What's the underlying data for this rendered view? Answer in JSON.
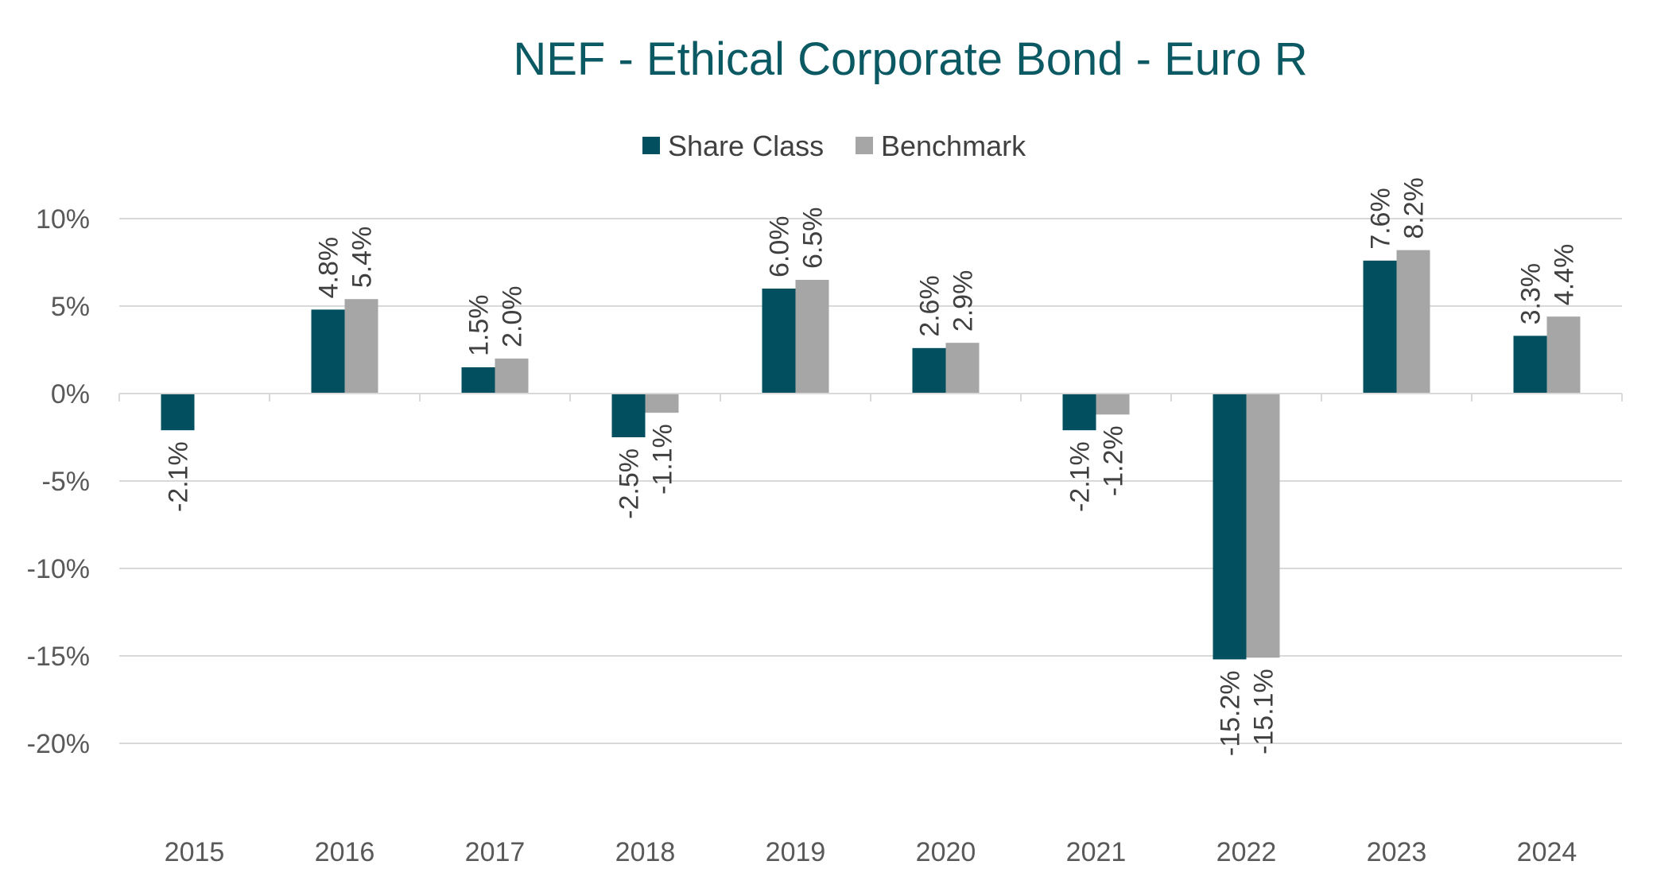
{
  "chart_data": {
    "type": "bar",
    "title": "NEF - Ethical Corporate Bond - Euro R",
    "categories": [
      "2015",
      "2016",
      "2017",
      "2018",
      "2019",
      "2020",
      "2021",
      "2022",
      "2023",
      "2024"
    ],
    "series": [
      {
        "name": "Share Class",
        "color": "#02505f",
        "values": [
          -2.1,
          4.8,
          1.5,
          -2.5,
          6.0,
          2.6,
          -2.1,
          -15.2,
          7.6,
          3.3
        ],
        "labels": [
          "-2.1%",
          "4.8%",
          "1.5%",
          "-2.5%",
          "6.0%",
          "2.6%",
          "-2.1%",
          "-15.2%",
          "7.6%",
          "3.3%"
        ]
      },
      {
        "name": "Benchmark",
        "color": "#a6a6a6",
        "values": [
          null,
          5.4,
          2.0,
          -1.1,
          6.5,
          2.9,
          -1.2,
          -15.1,
          8.2,
          4.4
        ],
        "labels": [
          "",
          "5.4%",
          "2.0%",
          "-1.1%",
          "6.5%",
          "2.9%",
          "-1.2%",
          "-15.1%",
          "8.2%",
          "4.4%"
        ]
      }
    ],
    "ylim": [
      -25,
      10
    ],
    "yticks": [
      10,
      5,
      0,
      -5,
      -10,
      -15,
      -20
    ],
    "ytick_labels": [
      "10%",
      "5%",
      "0%",
      "-5%",
      "-10%",
      "-15%",
      "-20%"
    ],
    "xlabel": "",
    "ylabel": "",
    "grid": true,
    "legend_position": "top-center",
    "title_color": "#0b5a63",
    "grid_color": "#d9d9d9"
  }
}
